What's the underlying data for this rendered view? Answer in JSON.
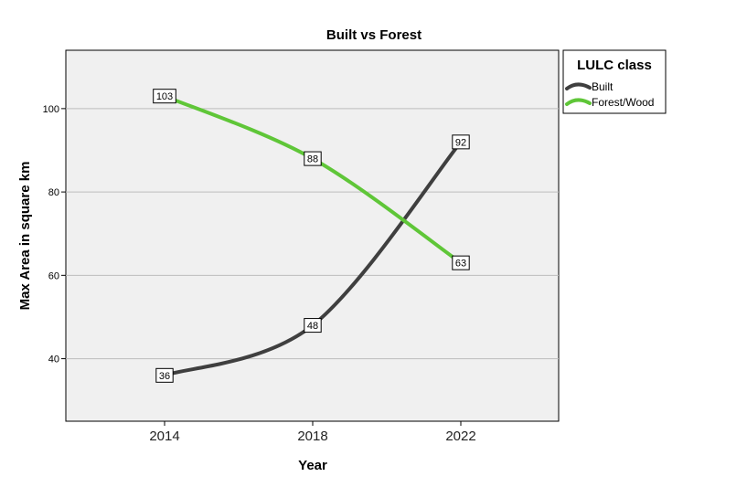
{
  "chart_data": {
    "type": "line",
    "title": "Built vs Forest",
    "xlabel": "Year",
    "ylabel": "Max Area in square km",
    "categories": [
      "2014",
      "2018",
      "2022"
    ],
    "ylim": [
      25,
      114
    ],
    "yticks": [
      40,
      60,
      80,
      100
    ],
    "grid": true,
    "legend": {
      "title": "LULC class",
      "placement": "right"
    },
    "series": [
      {
        "name": "Built",
        "values": [
          36,
          48,
          92
        ],
        "color": "#3f3f3f"
      },
      {
        "name": "Forest/Wood",
        "values": [
          103,
          88,
          63
        ],
        "color": "#5fc638"
      }
    ]
  }
}
